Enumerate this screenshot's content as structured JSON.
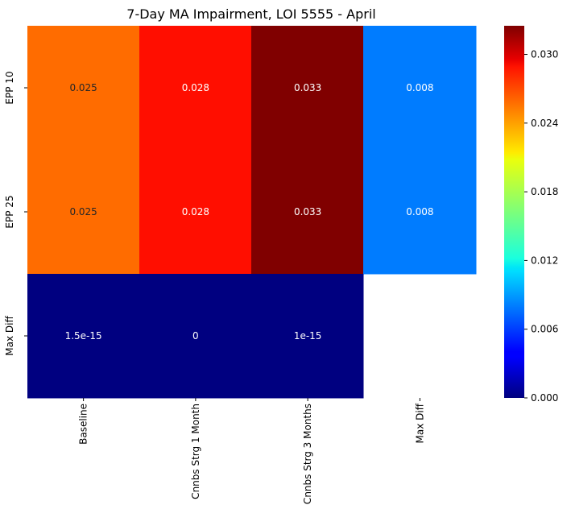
{
  "chart_data": {
    "type": "heatmap",
    "title": "7-Day MA Impairment, LOI 5555 - April",
    "rows": [
      "EPP 10",
      "EPP 25",
      "Max Diff"
    ],
    "columns": [
      "Baseline",
      "Cnnbs Strg 1 Month",
      "Cnnbs Strg 3 Months",
      "Max Diff"
    ],
    "values": [
      [
        0.025,
        0.028,
        0.033,
        0.008
      ],
      [
        0.025,
        0.028,
        0.033,
        0.008
      ],
      [
        1.5e-15,
        0,
        1e-15,
        null
      ]
    ],
    "cell_labels": [
      [
        "0.025",
        "0.028",
        "0.033",
        "0.008"
      ],
      [
        "0.025",
        "0.028",
        "0.033",
        "0.008"
      ],
      [
        "1.5e-15",
        "0",
        "1e-15",
        ""
      ]
    ],
    "colormap": "jet",
    "vmin": 0,
    "vmax": 0.0325,
    "colorbar_ticks": [
      0.0,
      0.006,
      0.012,
      0.018,
      0.024,
      0.03
    ],
    "colorbar_tick_labels": [
      "0.000",
      "0.006",
      "0.012",
      "0.018",
      "0.024",
      "0.030"
    ],
    "xlabel": "",
    "ylabel": ""
  }
}
